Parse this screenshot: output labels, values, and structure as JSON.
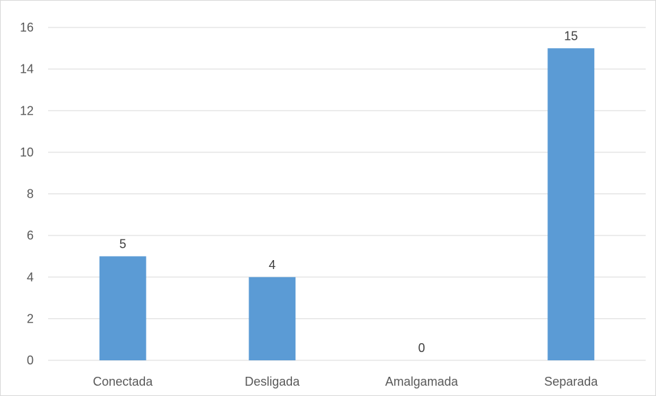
{
  "chart_data": {
    "type": "bar",
    "categories": [
      "Conectada",
      "Desligada",
      "Amalgamada",
      "Separada"
    ],
    "values": [
      5,
      4,
      0,
      15
    ],
    "data_labels": [
      "5",
      "4",
      "0",
      "15"
    ],
    "ylim": [
      0,
      16
    ],
    "yticks": [
      0,
      2,
      4,
      6,
      8,
      10,
      12,
      14,
      16
    ],
    "ytick_labels": [
      "0",
      "2",
      "4",
      "6",
      "8",
      "10",
      "12",
      "14",
      "16"
    ],
    "grid": true,
    "legend": "none",
    "bar_color": "#5b9bd5",
    "grid_color": "#d9d9d9"
  }
}
